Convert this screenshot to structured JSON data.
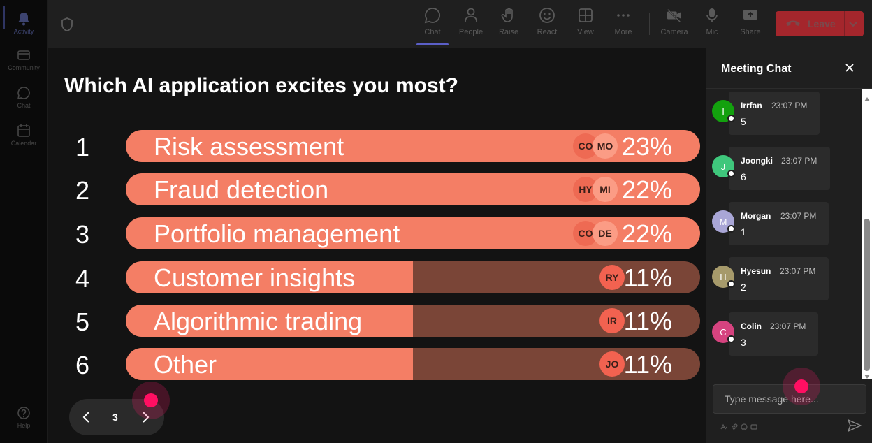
{
  "rail": {
    "items": [
      {
        "label": "Activity",
        "icon": "bell-icon"
      },
      {
        "label": "Community",
        "icon": "community-icon"
      },
      {
        "label": "Chat",
        "icon": "chat-icon"
      },
      {
        "label": "Calendar",
        "icon": "calendar-icon"
      },
      {
        "label": "Help",
        "icon": "help-icon"
      }
    ]
  },
  "toolbar": {
    "buttons": [
      {
        "label": "Chat",
        "icon": "chat-icon"
      },
      {
        "label": "People",
        "icon": "people-icon"
      },
      {
        "label": "Raise",
        "icon": "raise-hand-icon"
      },
      {
        "label": "React",
        "icon": "smiley-icon"
      },
      {
        "label": "View",
        "icon": "grid-icon"
      },
      {
        "label": "More",
        "icon": "ellipsis-icon"
      },
      {
        "label": "Camera",
        "icon": "camera-off-icon"
      },
      {
        "label": "Mic",
        "icon": "mic-icon"
      },
      {
        "label": "Share",
        "icon": "share-icon"
      }
    ],
    "leave_label": "Leave",
    "active_tab": "Chat"
  },
  "poll": {
    "question": "Which AI application excites you most?",
    "options": [
      {
        "rank": "1",
        "label": "Risk assessment",
        "percent_text": "23%",
        "fill": 1.0,
        "avatars": [
          "CO",
          "MO"
        ]
      },
      {
        "rank": "2",
        "label": "Fraud detection",
        "percent_text": "22%",
        "fill": 1.0,
        "avatars": [
          "HY",
          "MI"
        ]
      },
      {
        "rank": "3",
        "label": "Portfolio management",
        "percent_text": "22%",
        "fill": 1.0,
        "avatars": [
          "CO",
          "DE"
        ]
      },
      {
        "rank": "4",
        "label": "Customer insights",
        "percent_text": "11%",
        "fill": 0.5,
        "avatars": [
          "RY"
        ]
      },
      {
        "rank": "5",
        "label": "Algorithmic trading",
        "percent_text": "11%",
        "fill": 0.5,
        "avatars": [
          "IR"
        ]
      },
      {
        "rank": "6",
        "label": "Other",
        "percent_text": "11%",
        "fill": 0.5,
        "avatars": [
          "JO"
        ]
      }
    ],
    "page": "3"
  },
  "chat": {
    "title": "Meeting Chat",
    "messages": [
      {
        "initial": "I",
        "name": "Irrfan",
        "time": "23:07 PM",
        "text": "5",
        "color": "#13a10e"
      },
      {
        "initial": "J",
        "name": "Joongki",
        "time": "23:07 PM",
        "text": "6",
        "color": "#3fc77c"
      },
      {
        "initial": "M",
        "name": "Morgan",
        "time": "23:07 PM",
        "text": "1",
        "color": "#a9a6d6"
      },
      {
        "initial": "H",
        "name": "Hyesun",
        "time": "23:07 PM",
        "text": "2",
        "color": "#a69a6b"
      },
      {
        "initial": "C",
        "name": "Colin",
        "time": "23:07 PM",
        "text": "3",
        "color": "#d6437f"
      }
    ],
    "input_placeholder": "Type message here..."
  },
  "colors": {
    "bar": "#f47e65",
    "bar_remainder": "#7a4537",
    "leave": "#a4262c",
    "accent": "#5b5fc7",
    "cursor": "#ff0f62"
  }
}
